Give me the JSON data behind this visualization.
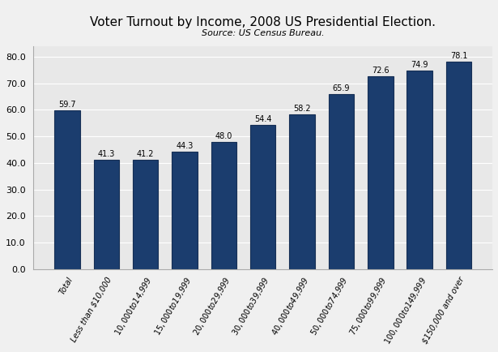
{
  "title": "Voter Turnout by Income, 2008 US Presidential Election.",
  "subtitle": "Source: US Census Bureau.",
  "categories": [
    "Total",
    "Less than $10,000",
    "$10,000 to $14,999",
    "$15,000 to $19,999",
    "$20,000 to $29,999",
    "$30,000 to $39,999",
    "$40,000 to $49,999",
    "$50,000 to $74,999",
    "$75,000 to $99,999",
    "$100,000 to $149,999",
    "$150,000 and over"
  ],
  "values": [
    59.7,
    41.3,
    41.2,
    44.3,
    48.0,
    54.4,
    58.2,
    65.9,
    72.6,
    74.9,
    78.1
  ],
  "bar_color": "#1b3d6e",
  "bar_edge_color": "#162f55",
  "background_color": "#f0f0f0",
  "plot_bg_color": "#e8e8e8",
  "grid_color": "#ffffff",
  "ylim": [
    0,
    84
  ],
  "yticks": [
    0.0,
    10.0,
    20.0,
    30.0,
    40.0,
    50.0,
    60.0,
    70.0,
    80.0
  ],
  "title_fontsize": 11,
  "subtitle_fontsize": 8,
  "label_fontsize": 7,
  "tick_fontsize": 8,
  "value_fontsize": 7
}
